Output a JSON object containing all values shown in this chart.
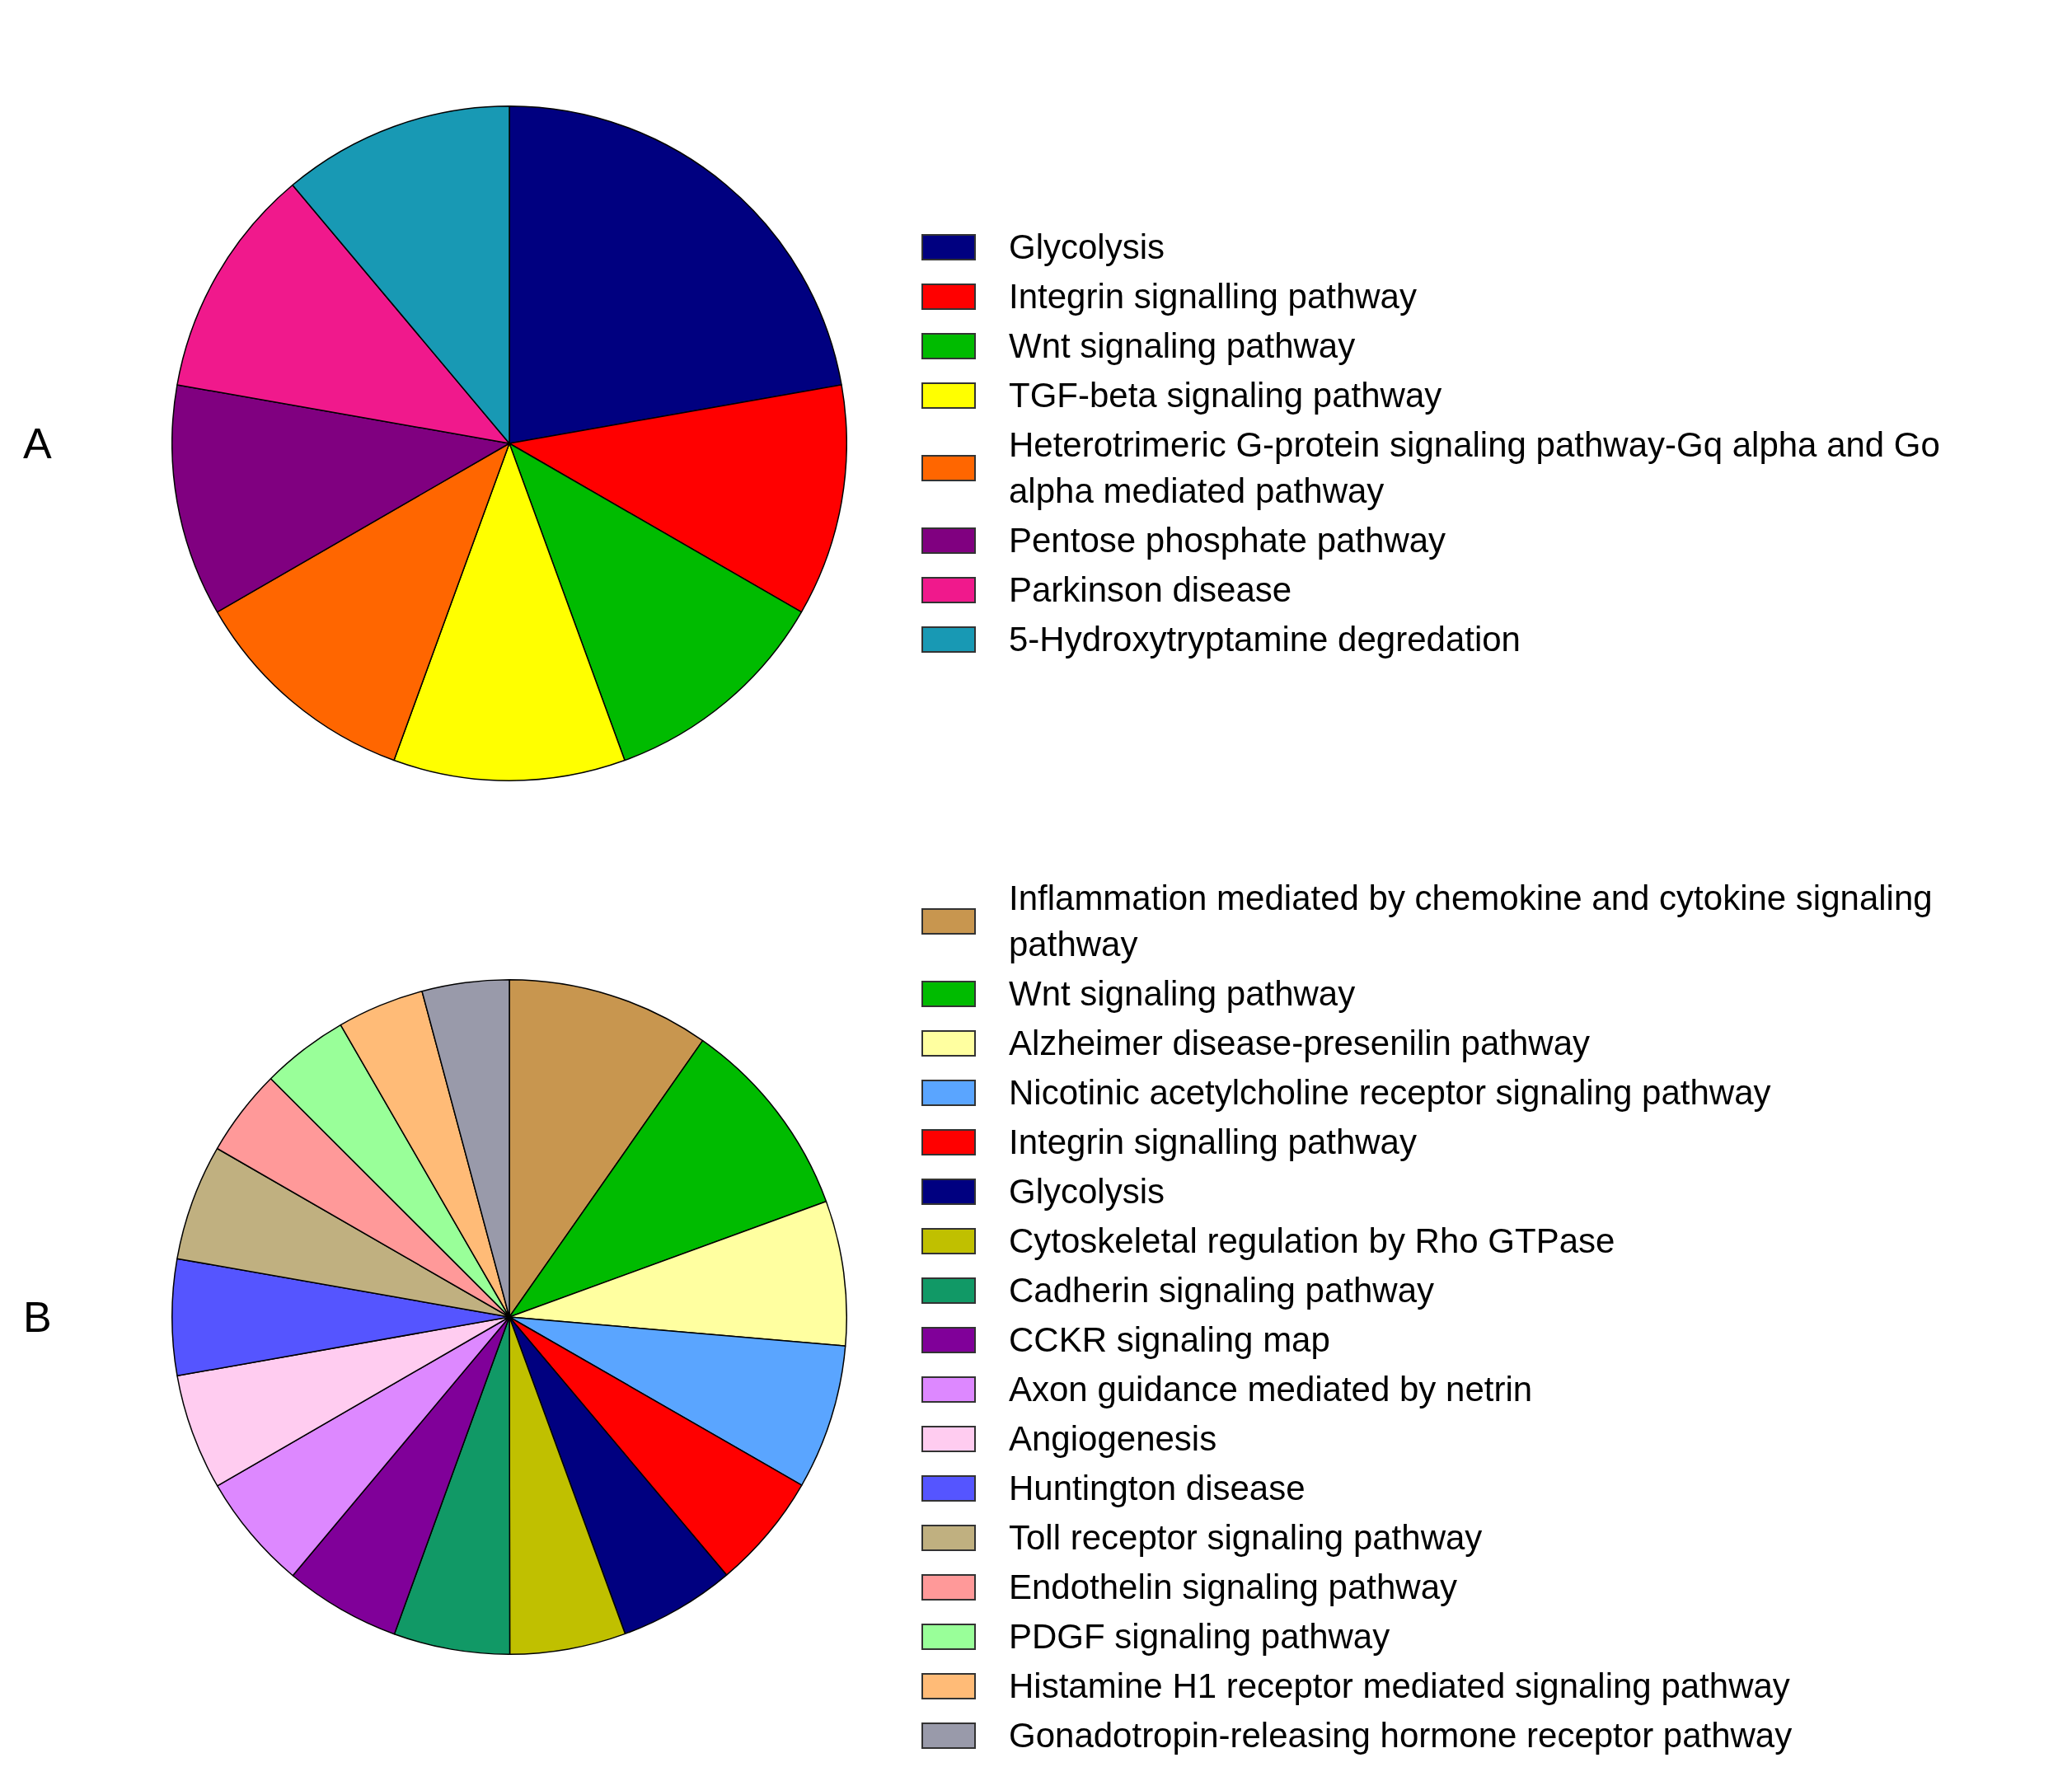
{
  "chart_data": [
    {
      "type": "pie",
      "title": "A",
      "legend": "right",
      "categories": [
        "Glycolysis",
        "Integrin signalling pathway",
        "Wnt signaling pathway",
        "TGF-beta signaling pathway",
        "Heterotrimeric G-protein signaling pathway-Gq alpha and Go alpha mediated pathway",
        "Pentose phosphate pathway",
        "Parkinson disease",
        "5-Hydroxytryptamine degredation"
      ],
      "values": [
        22.22,
        11.11,
        11.11,
        11.11,
        11.11,
        11.11,
        11.11,
        11.11
      ],
      "colors": [
        "#000080",
        "#ff0000",
        "#00bb00",
        "#ffff00",
        "#ff6600",
        "#800080",
        "#f0198c",
        "#1899b4"
      ]
    },
    {
      "type": "pie",
      "title": "B",
      "legend": "right",
      "categories": [
        "Inflammation mediated by chemokine and cytokine signaling pathway",
        "Wnt signaling pathway",
        "Alzheimer disease-presenilin pathway",
        "Nicotinic acetylcholine receptor signaling pathway",
        "Integrin signalling pathway",
        "Glycolysis",
        "Cytoskeletal regulation by Rho GTPase",
        "Cadherin signaling pathway",
        "CCKR signaling map",
        "Axon guidance mediated by netrin",
        "Angiogenesis",
        "Huntington disease",
        "Toll receptor signaling pathway",
        "Endothelin signaling pathway",
        "PDGF signaling pathway",
        "Histamine H1 receptor mediated signaling pathway",
        "Gonadotropin-releasing hormone receptor pathway"
      ],
      "values": [
        9.72,
        9.72,
        6.94,
        6.94,
        5.56,
        5.56,
        5.56,
        5.56,
        5.56,
        5.56,
        5.56,
        5.56,
        5.56,
        4.17,
        4.17,
        4.17,
        4.17
      ],
      "colors": [
        "#c8964f",
        "#00bb00",
        "#ffffa0",
        "#5aa5ff",
        "#ff0000",
        "#000080",
        "#c0c000",
        "#119966",
        "#800099",
        "#dd88ff",
        "#ffccf0",
        "#5555ff",
        "#c0b080",
        "#ff9999",
        "#99ff99",
        "#ffbb77",
        "#999aaa"
      ]
    }
  ]
}
